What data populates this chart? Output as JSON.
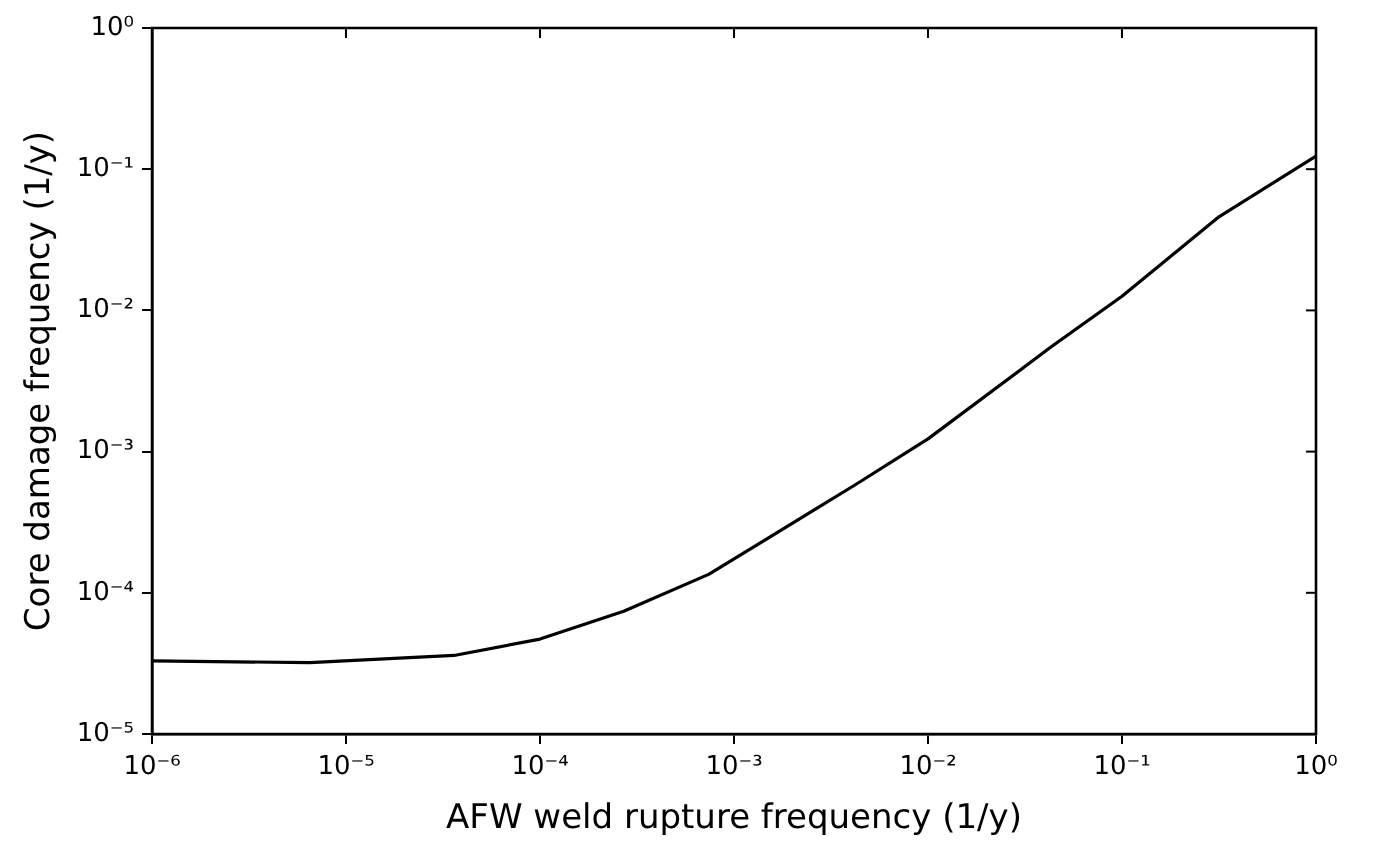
{
  "chart_data": {
    "type": "line",
    "xlabel": "AFW weld rupture frequency (1/y)",
    "ylabel": "Core damage frequency (1/y)",
    "log": "xy",
    "grid": false,
    "legend": false,
    "marker": "none",
    "line_style": "solid",
    "xlim": [
      1e-06,
      1
    ],
    "ylim": [
      1e-05,
      1
    ],
    "xticks": [
      {
        "value": 1e-06,
        "label": "10⁻⁶"
      },
      {
        "value": 1e-05,
        "label": "10⁻⁵"
      },
      {
        "value": 0.0001,
        "label": "10⁻⁴"
      },
      {
        "value": 0.001,
        "label": "10⁻³"
      },
      {
        "value": 0.01,
        "label": "10⁻²"
      },
      {
        "value": 0.1,
        "label": "10⁻¹"
      },
      {
        "value": 1,
        "label": "10⁰"
      }
    ],
    "yticks": [
      {
        "value": 1e-05,
        "label": "10⁻⁵"
      },
      {
        "value": 0.0001,
        "label": "10⁻⁴"
      },
      {
        "value": 0.001,
        "label": "10⁻³"
      },
      {
        "value": 0.01,
        "label": "10⁻²"
      },
      {
        "value": 0.1,
        "label": "10⁻¹"
      },
      {
        "value": 1,
        "label": "10⁰"
      }
    ],
    "series": [
      {
        "color": "#000000",
        "x": [
          1e-06,
          6.5e-06,
          3.6e-05,
          0.0001,
          0.00027,
          0.00074,
          0.0042,
          0.01,
          0.043,
          0.1,
          0.316,
          1
        ],
        "values": [
          3.3e-05,
          3.2e-05,
          3.6e-05,
          4.7e-05,
          7.4e-05,
          0.000135,
          0.00058,
          0.00123,
          0.0055,
          0.0126,
          0.046,
          0.124
        ]
      }
    ]
  }
}
